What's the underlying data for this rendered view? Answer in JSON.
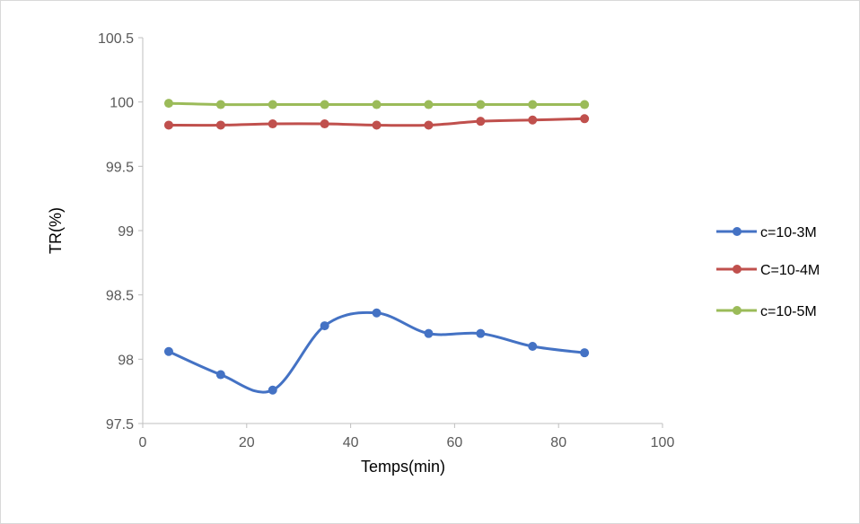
{
  "chart_data": {
    "type": "line",
    "xlabel": "Temps(min)",
    "ylabel": "TR(%)",
    "xlim": [
      0,
      100
    ],
    "ylim": [
      97.5,
      100.5
    ],
    "x_ticks": [
      "0",
      "20",
      "40",
      "60",
      "80",
      "100"
    ],
    "y_ticks": [
      "97.5",
      "98",
      "98.5",
      "99",
      "99.5",
      "100",
      "100.5"
    ],
    "x": [
      5,
      15,
      25,
      35,
      45,
      55,
      65,
      75,
      85
    ],
    "smooth": true,
    "grid": false,
    "legend_position": "right",
    "series": [
      {
        "name": "c=10-3M",
        "color": "#4472C4",
        "values": [
          98.06,
          97.88,
          97.76,
          98.26,
          98.36,
          98.2,
          98.2,
          98.1,
          98.05
        ]
      },
      {
        "name": "C=10-4M",
        "color": "#C0504D",
        "values": [
          99.82,
          99.82,
          99.83,
          99.83,
          99.82,
          99.82,
          99.85,
          99.86,
          99.87
        ]
      },
      {
        "name": "c=10-5M",
        "color": "#9BBB59",
        "values": [
          99.99,
          99.98,
          99.98,
          99.98,
          99.98,
          99.98,
          99.98,
          99.98,
          99.98
        ]
      }
    ]
  },
  "colors": {
    "axis": "#bfbfbf",
    "tick_text": "#595959"
  }
}
